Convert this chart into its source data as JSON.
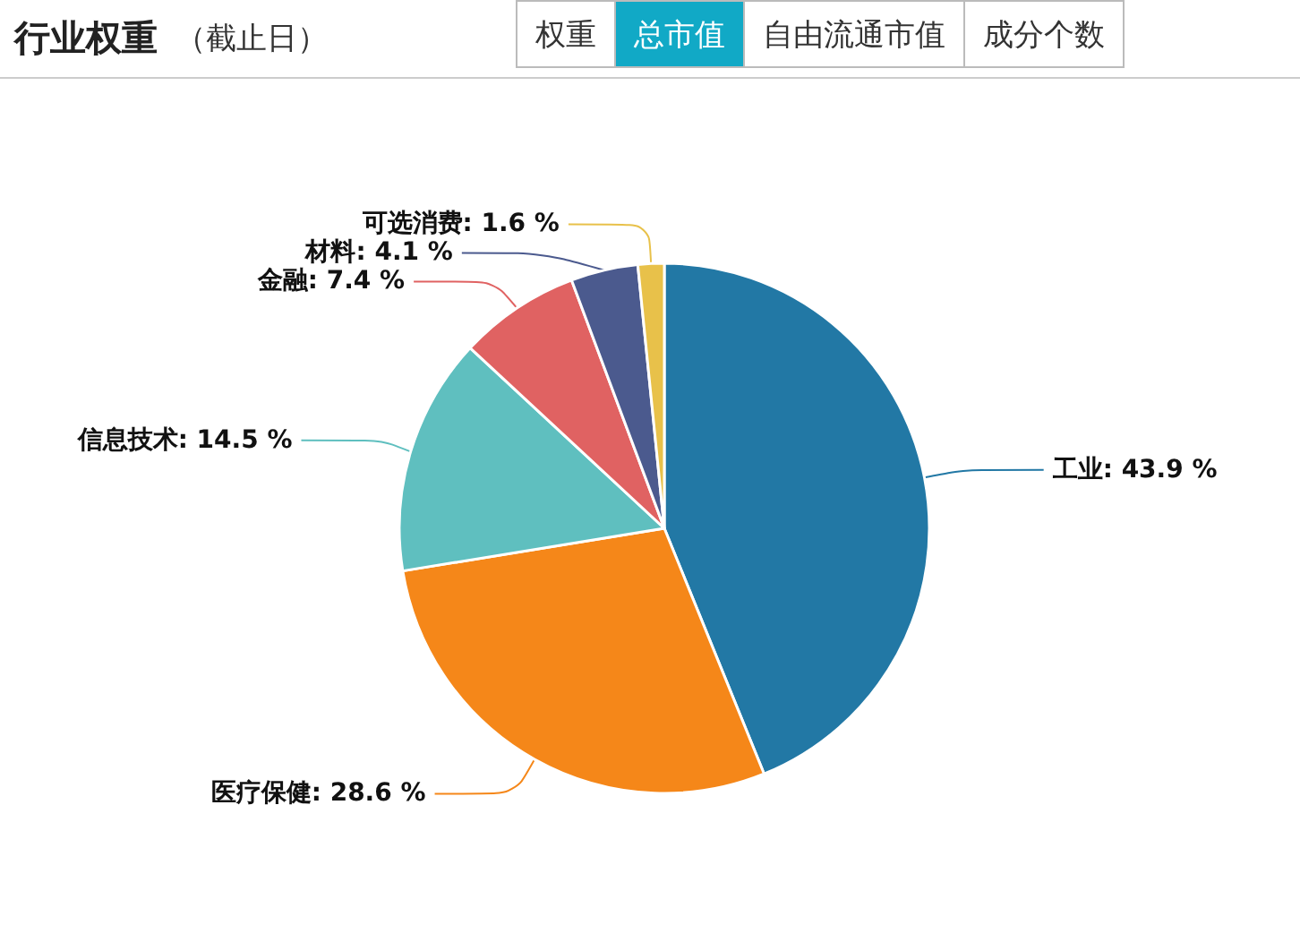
{
  "chart_data": {
    "type": "pie",
    "title": "行业权重",
    "subtitle": "（截止日）",
    "annotations": [
      "权重",
      "总市值",
      "自由流通市值",
      "成分个数"
    ],
    "categories": [
      "工业",
      "医疗保健",
      "信息技术",
      "金融",
      "材料",
      "可选消费"
    ],
    "values": [
      43.9,
      28.6,
      14.5,
      7.4,
      4.1,
      1.6
    ],
    "colors": [
      "#2278a5",
      "#f58719",
      "#5fbfbf",
      "#e06262",
      "#4b5a8e",
      "#e8c14a"
    ],
    "value_labels": [
      "43.9 %",
      "28.6 %",
      "14.5 %",
      "7.4 %",
      "4.1 %",
      "1.6 %"
    ],
    "legend": false
  }
}
